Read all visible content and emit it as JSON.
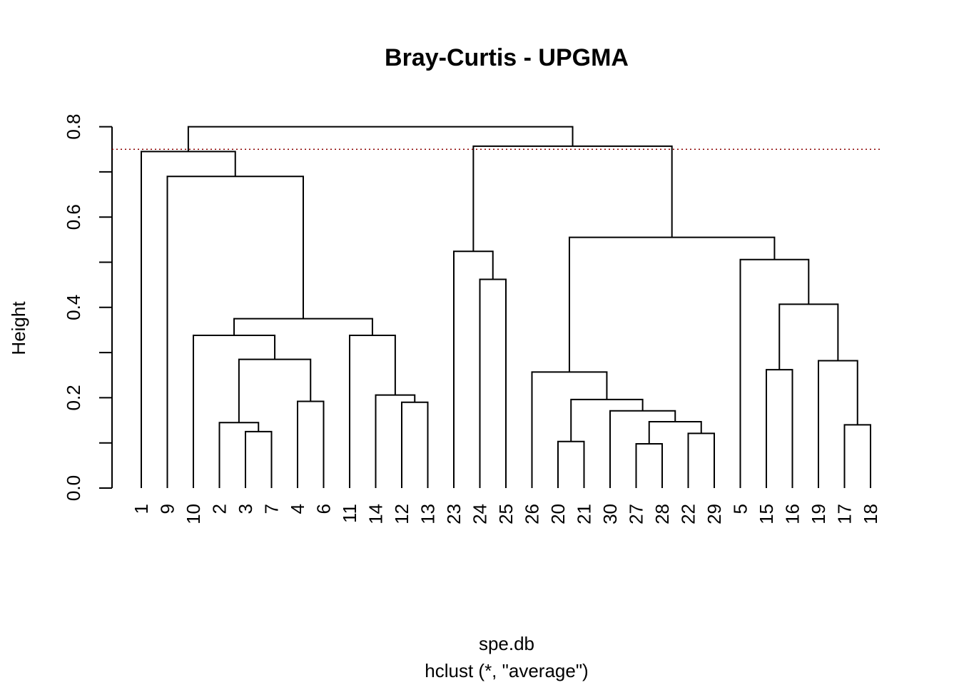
{
  "chart_data": {
    "type": "dendrogram",
    "title": "Bray-Curtis - UPGMA",
    "xlabel": "spe.db",
    "subtitle": "hclust (*, \"average\")",
    "ylabel": "Height",
    "ylim": [
      0,
      0.8
    ],
    "yticks": [
      "0.0",
      "0.2",
      "0.4",
      "0.6",
      "0.8"
    ],
    "leaf_order": [
      "1",
      "9",
      "10",
      "2",
      "3",
      "7",
      "4",
      "6",
      "11",
      "14",
      "12",
      "13",
      "23",
      "24",
      "25",
      "26",
      "20",
      "21",
      "30",
      "27",
      "28",
      "22",
      "29",
      "5",
      "15",
      "16",
      "19",
      "17",
      "18"
    ],
    "cut_height": 0.75,
    "cut_color": "#8b0000",
    "merges": [
      {
        "id": "n1",
        "children": [
          "3",
          "7"
        ],
        "height": 0.125
      },
      {
        "id": "n2",
        "children": [
          "2",
          "n1"
        ],
        "height": 0.145
      },
      {
        "id": "n3",
        "children": [
          "4",
          "6"
        ],
        "height": 0.192
      },
      {
        "id": "n4",
        "children": [
          "n2",
          "n3"
        ],
        "height": 0.285
      },
      {
        "id": "n5",
        "children": [
          "10",
          "n4"
        ],
        "height": 0.338
      },
      {
        "id": "n6",
        "children": [
          "12",
          "13"
        ],
        "height": 0.19
      },
      {
        "id": "n7",
        "children": [
          "14",
          "n6"
        ],
        "height": 0.206
      },
      {
        "id": "n8",
        "children": [
          "11",
          "n7"
        ],
        "height": 0.338
      },
      {
        "id": "n9",
        "children": [
          "n5",
          "n8"
        ],
        "height": 0.375
      },
      {
        "id": "n10",
        "children": [
          "9",
          "n9"
        ],
        "height": 0.69
      },
      {
        "id": "n11",
        "children": [
          "1",
          "n10"
        ],
        "height": 0.745
      },
      {
        "id": "n12",
        "children": [
          "24",
          "25"
        ],
        "height": 0.462
      },
      {
        "id": "n13",
        "children": [
          "23",
          "n12"
        ],
        "height": 0.524
      },
      {
        "id": "n14",
        "children": [
          "20",
          "21"
        ],
        "height": 0.103
      },
      {
        "id": "n15",
        "children": [
          "27",
          "28"
        ],
        "height": 0.098
      },
      {
        "id": "n16",
        "children": [
          "22",
          "29"
        ],
        "height": 0.121
      },
      {
        "id": "n17",
        "children": [
          "n15",
          "n16"
        ],
        "height": 0.147
      },
      {
        "id": "n18",
        "children": [
          "30",
          "n17"
        ],
        "height": 0.171
      },
      {
        "id": "n19",
        "children": [
          "n14",
          "n18"
        ],
        "height": 0.196
      },
      {
        "id": "n20",
        "children": [
          "26",
          "n19"
        ],
        "height": 0.257
      },
      {
        "id": "n21",
        "children": [
          "15",
          "16"
        ],
        "height": 0.262
      },
      {
        "id": "n22",
        "children": [
          "17",
          "18"
        ],
        "height": 0.14
      },
      {
        "id": "n23",
        "children": [
          "19",
          "n22"
        ],
        "height": 0.282
      },
      {
        "id": "n24",
        "children": [
          "n21",
          "n23"
        ],
        "height": 0.407
      },
      {
        "id": "n25",
        "children": [
          "5",
          "n24"
        ],
        "height": 0.506
      },
      {
        "id": "n26",
        "children": [
          "n20",
          "n25"
        ],
        "height": 0.555
      },
      {
        "id": "n27",
        "children": [
          "n13",
          "n26"
        ],
        "height": 0.757
      },
      {
        "id": "n28",
        "children": [
          "n11",
          "n27"
        ],
        "height": 0.8
      }
    ]
  }
}
